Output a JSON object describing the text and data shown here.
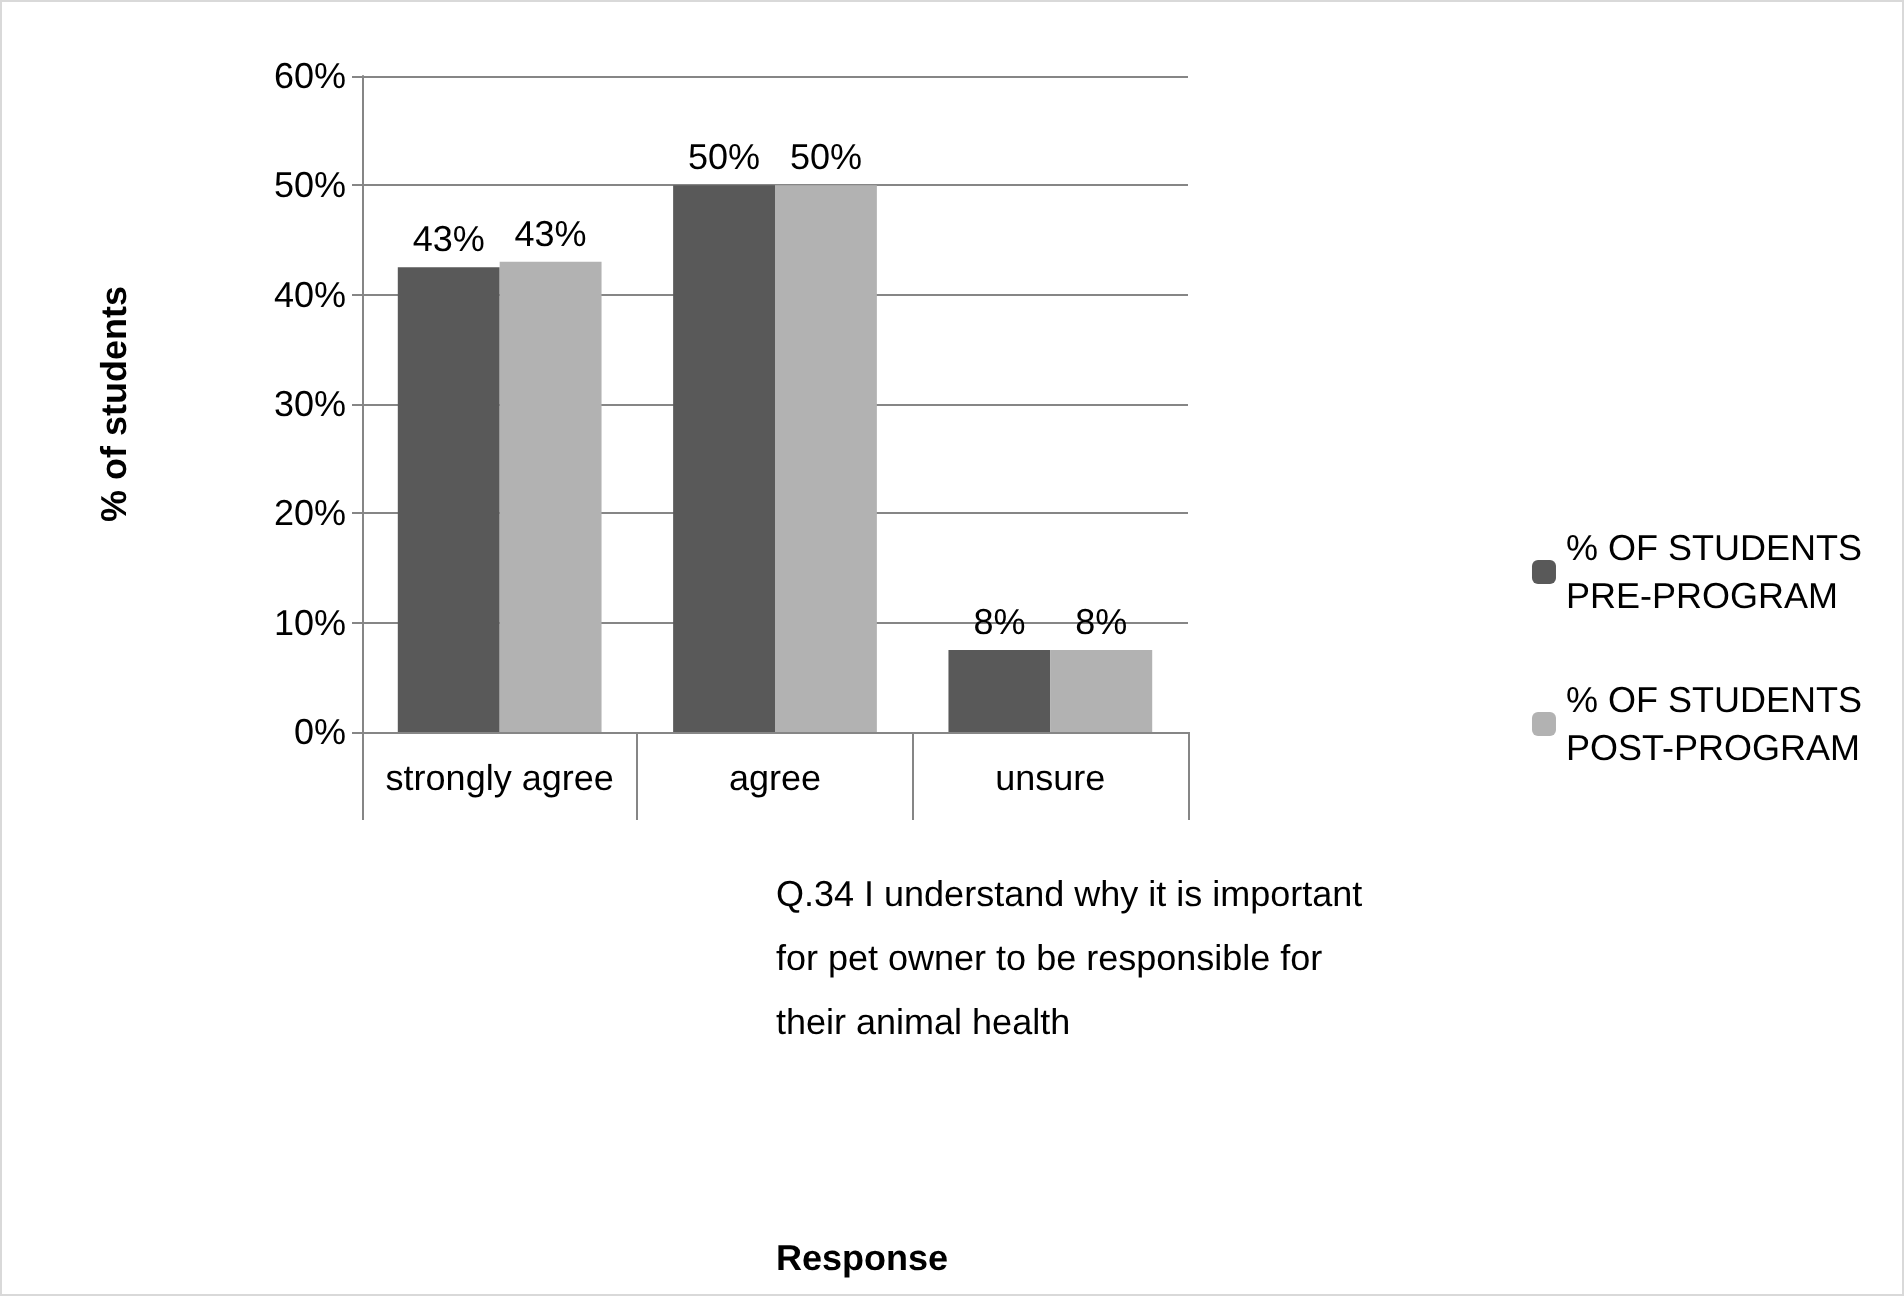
{
  "chart_data": {
    "type": "bar",
    "ylabel": "% of students",
    "categories": [
      "strongly agree",
      "agree",
      "unsure"
    ],
    "series": [
      {
        "name": "% OF STUDENTS PRE-PROGRAM",
        "color": "#595959",
        "values": [
          42.5,
          50,
          7.5
        ],
        "value_labels": [
          "43%",
          "50%",
          "8%"
        ]
      },
      {
        "name": "% OF STUDENTS POST-PROGRAM",
        "color": "#b2b2b2",
        "values": [
          43,
          50,
          7.5
        ],
        "value_labels": [
          "43%",
          "50%",
          "8%"
        ]
      }
    ],
    "ylim": [
      0,
      60
    ],
    "yticks": [
      {
        "value": 0,
        "label": "0%"
      },
      {
        "value": 10,
        "label": "10%"
      },
      {
        "value": 20,
        "label": "20%"
      },
      {
        "value": 30,
        "label": "30%"
      },
      {
        "value": 40,
        "label": "40%"
      },
      {
        "value": 50,
        "label": "50%"
      },
      {
        "value": 60,
        "label": "60%"
      }
    ],
    "grid": "y",
    "legend": "right",
    "annotations": [
      "Q.34 I understand why it is important for pet owner to be responsible for their animal health",
      "Response"
    ]
  }
}
